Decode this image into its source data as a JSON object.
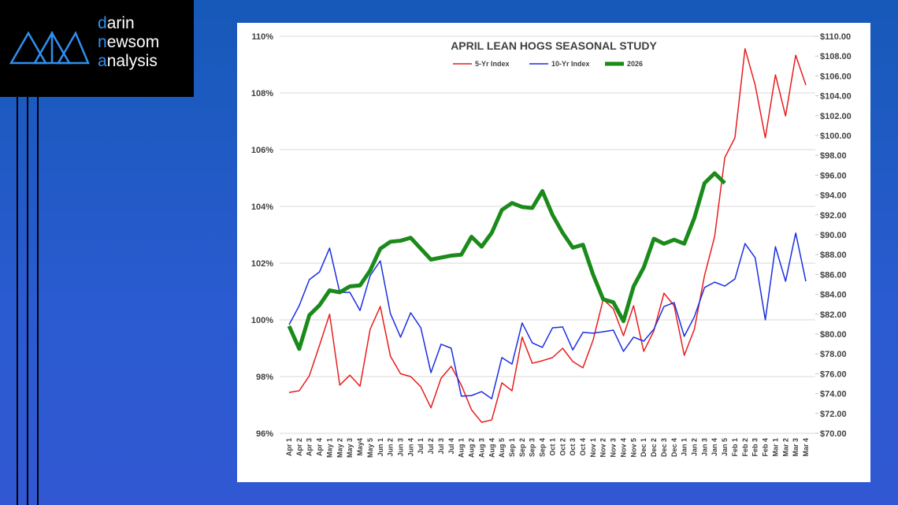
{
  "logo": [
    "darin",
    "newsom",
    "analysis"
  ],
  "chart_data": {
    "type": "line",
    "title": "APRIL LEAN HOGS SEASONAL STUDY",
    "categories": [
      "Apr 1",
      "Apr 2",
      "Apr 3",
      "Apr 4",
      "May 1",
      "May 2",
      "May 3",
      "May4",
      "May 5",
      "Jun 1",
      "Jun 2",
      "Jun 3",
      "Jun 4",
      "Jul 1",
      "Jul 2",
      "Jul 3",
      "Jul 4",
      "Aug 1",
      "Aug 2",
      "Aug 3",
      "Aug 4",
      "Aug 5",
      "Sep 1",
      "Sep 2",
      "Sep 3",
      "Sep 4",
      "Oct 1",
      "Oct 2",
      "Oct 3",
      "Oct 4",
      "Nov 1",
      "Nov 2",
      "Nov 3",
      "Nov 4",
      "Nov 5",
      "Dec 1",
      "Dec 2",
      "Dec 3",
      "Dec 4",
      "Jan 1",
      "Jan 2",
      "Jan 3",
      "Jan 4",
      "Jan 5",
      "Feb 1",
      "Feb 2",
      "Feb 3",
      "Feb 4",
      "Mar 1",
      "Mar 2",
      "Mar 3",
      "Mar 4"
    ],
    "series": [
      {
        "name": "5-Yr Index",
        "color": "#e81c1c",
        "width": 1.5,
        "axis": "y",
        "values": [
          97.44,
          97.5,
          98.03,
          99.1,
          100.2,
          97.7,
          98.05,
          97.66,
          99.67,
          100.47,
          98.72,
          98.1,
          98.0,
          97.64,
          96.9,
          97.94,
          98.36,
          97.7,
          96.83,
          96.39,
          96.47,
          97.78,
          97.5,
          99.39,
          98.47,
          98.56,
          98.67,
          99.0,
          98.53,
          98.31,
          99.28,
          100.72,
          100.39,
          99.44,
          100.5,
          98.89,
          99.61,
          100.94,
          100.5,
          98.75,
          99.67,
          101.56,
          102.94,
          105.72,
          106.42,
          109.56,
          108.28,
          106.42,
          108.64,
          107.19,
          109.33,
          108.28
        ]
      },
      {
        "name": "10-Yr Index",
        "color": "#1a2fe0",
        "width": 1.5,
        "axis": "y",
        "values": [
          99.83,
          100.5,
          101.42,
          101.69,
          102.53,
          100.97,
          100.97,
          100.33,
          101.56,
          102.08,
          100.22,
          99.39,
          100.25,
          99.72,
          98.14,
          99.14,
          99.0,
          97.31,
          97.33,
          97.47,
          97.22,
          98.67,
          98.44,
          99.89,
          99.19,
          99.03,
          99.72,
          99.75,
          98.94,
          99.56,
          99.53,
          99.58,
          99.64,
          98.89,
          99.39,
          99.25,
          99.67,
          100.47,
          100.61,
          99.42,
          100.11,
          101.14,
          101.33,
          101.19,
          101.44,
          102.69,
          102.19,
          100.0,
          102.58,
          101.36,
          103.06,
          101.36
        ]
      },
      {
        "name": "2026",
        "color": "#1a8a1a",
        "width": 5,
        "axis": "y2",
        "values": [
          80.8,
          78.5,
          81.9,
          82.9,
          84.4,
          84.2,
          84.8,
          84.9,
          86.4,
          88.6,
          89.3,
          89.4,
          89.7,
          88.6,
          87.5,
          87.7,
          87.9,
          88.0,
          89.8,
          88.8,
          90.2,
          92.5,
          93.2,
          92.8,
          92.7,
          94.4,
          92.0,
          90.2,
          88.7,
          89.0,
          86.0,
          83.5,
          83.2,
          81.3,
          84.8,
          86.7,
          89.6,
          89.1,
          89.5,
          89.1,
          91.7,
          95.2,
          96.2,
          95.2,
          null,
          null,
          null,
          null,
          null,
          null,
          null,
          null
        ]
      }
    ],
    "ylim": [
      96,
      110
    ],
    "yticks": [
      {
        "value": 96,
        "label": "96%"
      },
      {
        "value": 98,
        "label": "98%"
      },
      {
        "value": 100,
        "label": "100%"
      },
      {
        "value": 102,
        "label": "102%"
      },
      {
        "value": 104,
        "label": "104%"
      },
      {
        "value": 106,
        "label": "106%"
      },
      {
        "value": 108,
        "label": "108%"
      },
      {
        "value": 110,
        "label": "110%"
      }
    ],
    "y2lim": [
      70,
      110
    ],
    "y2ticks": [
      {
        "value": 70,
        "label": "$70.00"
      },
      {
        "value": 72,
        "label": "$72.00"
      },
      {
        "value": 74,
        "label": "$74.00"
      },
      {
        "value": 76,
        "label": "$76.00"
      },
      {
        "value": 78,
        "label": "$78.00"
      },
      {
        "value": 80,
        "label": "$80.00"
      },
      {
        "value": 82,
        "label": "$82.00"
      },
      {
        "value": 84,
        "label": "$84.00"
      },
      {
        "value": 86,
        "label": "$86.00"
      },
      {
        "value": 88,
        "label": "$88.00"
      },
      {
        "value": 90,
        "label": "$90.00"
      },
      {
        "value": 92,
        "label": "$92.00"
      },
      {
        "value": 94,
        "label": "$94.00"
      },
      {
        "value": 96,
        "label": "$96.00"
      },
      {
        "value": 98,
        "label": "$98.00"
      },
      {
        "value": 100,
        "label": "$100.00"
      },
      {
        "value": 102,
        "label": "$102.00"
      },
      {
        "value": 104,
        "label": "$104.00"
      },
      {
        "value": 106,
        "label": "$106.00"
      },
      {
        "value": 108,
        "label": "$108.00"
      },
      {
        "value": 110,
        "label": "$110.00"
      }
    ],
    "grid": true,
    "legend": "top"
  }
}
